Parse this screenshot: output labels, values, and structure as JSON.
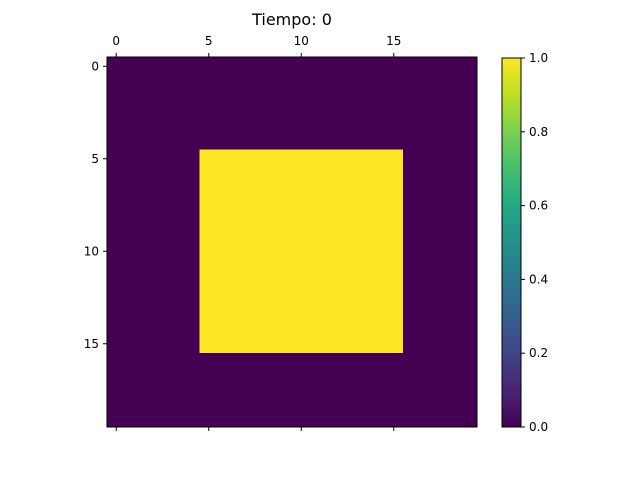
{
  "chart_data": {
    "type": "heatmap",
    "title": "Tiempo: 0",
    "rows": 20,
    "cols": 20,
    "values_description_rule": {
      "background_value": 0.0,
      "square_value": 1.0,
      "square_rows": [
        5,
        15
      ],
      "square_cols": [
        5,
        15
      ]
    },
    "x_ticks": [
      0,
      5,
      10,
      15
    ],
    "y_ticks": [
      0,
      5,
      10,
      15
    ],
    "x_tick_labels": [
      "0",
      "5",
      "10",
      "15"
    ],
    "y_tick_labels": [
      "0",
      "5",
      "10",
      "15"
    ],
    "x_axis_position": "top",
    "colormap": "viridis",
    "vmin": 0.0,
    "vmax": 1.0,
    "colorbar": {
      "ticks": [
        0.0,
        0.2,
        0.4,
        0.6,
        0.8,
        1.0
      ],
      "tick_labels": [
        "0.0",
        "0.2",
        "0.4",
        "0.6",
        "0.8",
        "1.0"
      ]
    },
    "colors": {
      "low": "#440154",
      "high": "#fde725"
    }
  }
}
